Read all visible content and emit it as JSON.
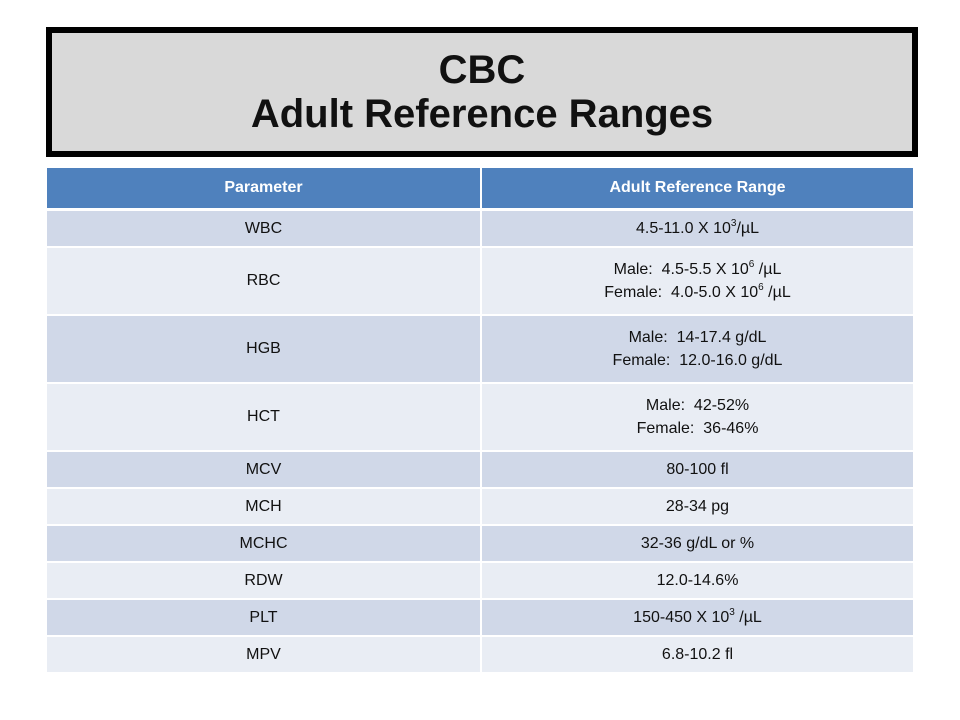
{
  "title": {
    "line1": "CBC",
    "line2": "Adult Reference Ranges"
  },
  "colors": {
    "header_bg": "#4f81bd",
    "row_odd": "#d0d8e8",
    "row_even": "#e9edf4",
    "title_bg": "#d9d9d9"
  },
  "table": {
    "headers": [
      "Parameter",
      "Adult Reference Range"
    ],
    "rows": [
      {
        "parameter": "WBC",
        "range": [
          {
            "text": "4.5-11.0 X 10",
            "sup": "3",
            "tail": "/µL"
          }
        ]
      },
      {
        "parameter": "RBC",
        "range": [
          {
            "text": "Male:  4.5-5.5 X 10",
            "sup": "6",
            "tail": " /µL"
          },
          {
            "text": "Female:  4.0-5.0 X 10",
            "sup": "6",
            "tail": " /µL"
          }
        ]
      },
      {
        "parameter": "HGB",
        "range": [
          {
            "text": "Male:  14-17.4 g/dL"
          },
          {
            "text": "Female:  12.0-16.0 g/dL"
          }
        ]
      },
      {
        "parameter": "HCT",
        "range": [
          {
            "text": "Male:  42-52%"
          },
          {
            "text": "Female:  36-46%"
          }
        ]
      },
      {
        "parameter": "MCV",
        "range": [
          {
            "text": "80-100 fl"
          }
        ]
      },
      {
        "parameter": "MCH",
        "range": [
          {
            "text": "28-34 pg"
          }
        ]
      },
      {
        "parameter": "MCHC",
        "range": [
          {
            "text": "32-36 g/dL or %"
          }
        ]
      },
      {
        "parameter": "RDW",
        "range": [
          {
            "text": "12.0-14.6%"
          }
        ]
      },
      {
        "parameter": "PLT",
        "range": [
          {
            "text": "150-450 X 10",
            "sup": "3",
            "tail": " /µL"
          }
        ]
      },
      {
        "parameter": "MPV",
        "range": [
          {
            "text": "6.8-10.2 fl"
          }
        ]
      }
    ]
  }
}
